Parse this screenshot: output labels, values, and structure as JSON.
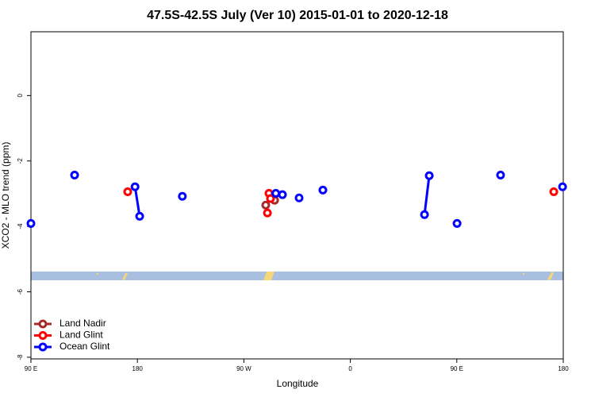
{
  "chart_data": {
    "type": "line",
    "title": "47.5S-42.5S July (Ver 10)   2015-01-01 to 2020-12-18",
    "x_label": "Longitude",
    "y_label": "XCO2 - MLO trend (ppm)",
    "xlim": [
      90,
      540
    ],
    "ylim": [
      -8.05,
      1.95
    ],
    "xticks": [
      {
        "value": 90,
        "label": "90 E"
      },
      {
        "value": 180,
        "label": "180"
      },
      {
        "value": 270,
        "label": "90 W"
      },
      {
        "value": 360,
        "label": "0"
      },
      {
        "value": 450,
        "label": "90 E"
      },
      {
        "value": 540,
        "label": "180"
      }
    ],
    "yticks": [
      0,
      -2,
      -4,
      -6,
      -8
    ],
    "legend": "bottom-left",
    "series": [
      {
        "name": "Land Nadir",
        "color": "#a52a2a",
        "x": [
          288.5,
          null,
          296.0
        ],
        "values": [
          -3.35,
          null,
          -3.2
        ]
      },
      {
        "name": "Land Glint",
        "color": "#ff0000",
        "x": [
          171.8,
          null,
          291.2,
          null,
          289.9,
          null,
          292.5,
          null,
          532.0
        ],
        "values": [
          -2.94,
          null,
          -2.99,
          null,
          -3.59,
          null,
          -3.15,
          null,
          -2.94
        ]
      },
      {
        "name": "Ocean Glint",
        "color": "#0000ff",
        "x": [
          90.0,
          null,
          126.9,
          null,
          178.0,
          181.9,
          null,
          218.0,
          null,
          297.0,
          null,
          302.6,
          null,
          316.7,
          null,
          336.8,
          null,
          422.7,
          426.7,
          null,
          450.2,
          null,
          487.0,
          null,
          539.4
        ],
        "values": [
          -3.91,
          null,
          -2.43,
          null,
          -2.79,
          -3.69,
          null,
          -3.08,
          null,
          -2.99,
          null,
          -3.03,
          null,
          -3.13,
          null,
          -2.89,
          null,
          -3.64,
          -2.45,
          null,
          -3.91,
          null,
          -2.43,
          null,
          -2.79
        ]
      }
    ]
  }
}
